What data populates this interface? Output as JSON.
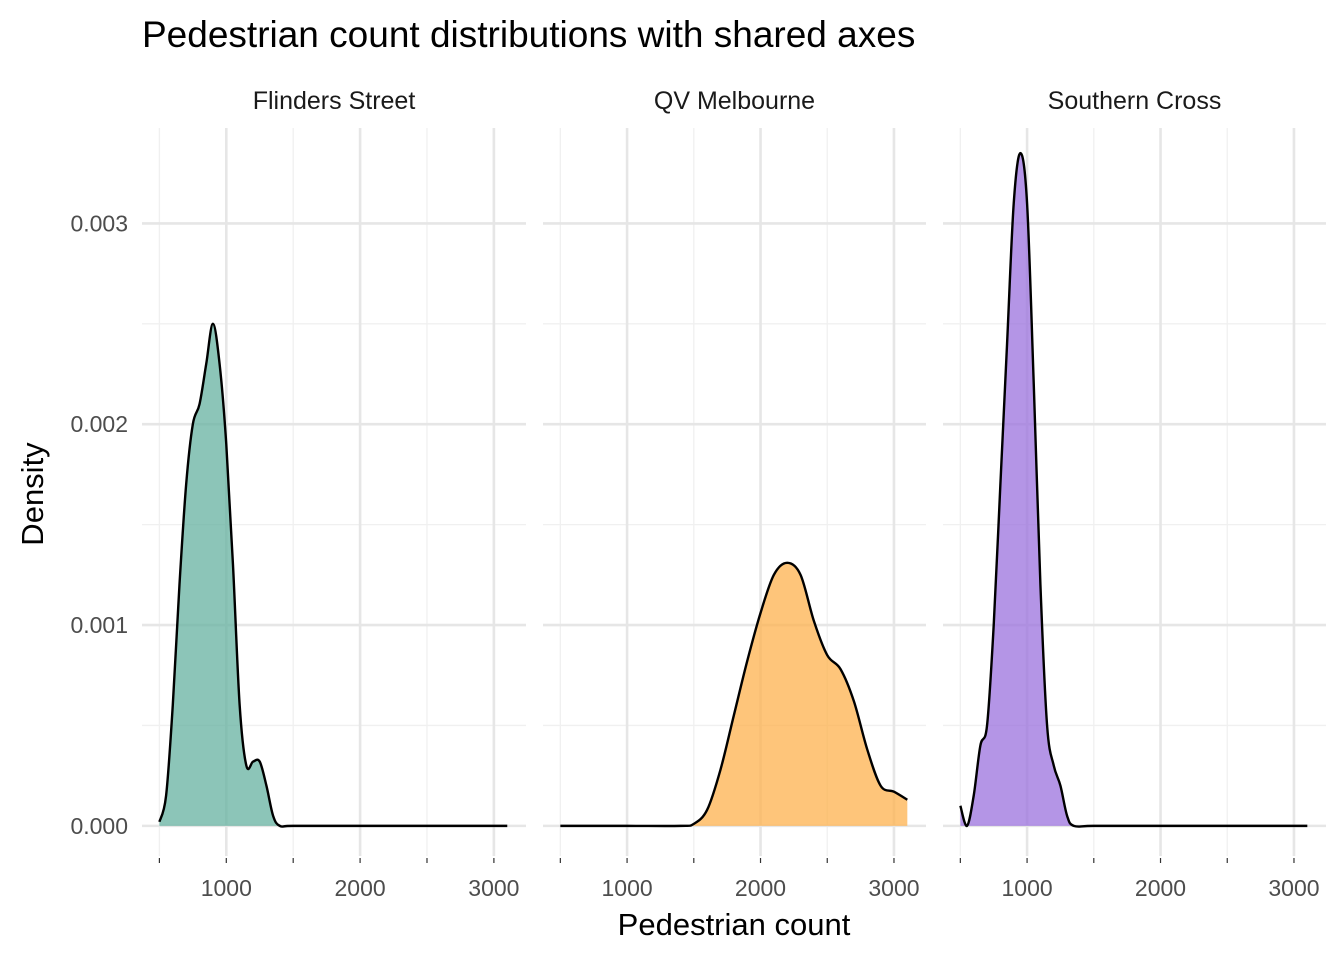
{
  "chart_data": {
    "type": "area",
    "title": "Pedestrian count distributions with shared axes",
    "xlabel": "Pedestrian count",
    "ylabel": "Density",
    "xlim": [
      370,
      3240
    ],
    "ylim": [
      -0.00015,
      0.003475
    ],
    "x_ticks": [
      1000,
      2000,
      3000
    ],
    "x_tick_labels": [
      "1000",
      "2000",
      "3000"
    ],
    "y_ticks": [
      0,
      0.001,
      0.002,
      0.003
    ],
    "y_tick_labels": [
      "0.000",
      "0.001",
      "0.002",
      "0.003"
    ],
    "grid": true,
    "legend": "none",
    "panels": [
      {
        "name": "Flinders Street",
        "color": "#66B2A0",
        "points": [
          [
            500,
            2e-05
          ],
          [
            550,
            0.00015
          ],
          [
            600,
            0.0006
          ],
          [
            650,
            0.0012
          ],
          [
            700,
            0.0017
          ],
          [
            750,
            0.002
          ],
          [
            800,
            0.0021
          ],
          [
            850,
            0.0023
          ],
          [
            900,
            0.0025
          ],
          [
            950,
            0.0023
          ],
          [
            1000,
            0.0019
          ],
          [
            1050,
            0.0013
          ],
          [
            1100,
            0.0006
          ],
          [
            1150,
            0.0003
          ],
          [
            1200,
            0.00032
          ],
          [
            1250,
            0.00032
          ],
          [
            1300,
            0.0002
          ],
          [
            1350,
            5e-05
          ],
          [
            1400,
            0.0
          ],
          [
            1500,
            0.0
          ],
          [
            2000,
            0.0
          ],
          [
            2500,
            0.0
          ],
          [
            3100,
            0.0
          ]
        ]
      },
      {
        "name": "QV Melbourne",
        "color": "#FDB24E",
        "points": [
          [
            500,
            0.0
          ],
          [
            1000,
            0.0
          ],
          [
            1400,
            0.0
          ],
          [
            1500,
            1e-05
          ],
          [
            1600,
            8e-05
          ],
          [
            1700,
            0.00028
          ],
          [
            1800,
            0.00055
          ],
          [
            1900,
            0.00082
          ],
          [
            2000,
            0.00106
          ],
          [
            2100,
            0.00125
          ],
          [
            2200,
            0.00131
          ],
          [
            2300,
            0.00125
          ],
          [
            2400,
            0.00102
          ],
          [
            2500,
            0.00085
          ],
          [
            2600,
            0.00078
          ],
          [
            2700,
            0.00062
          ],
          [
            2800,
            0.00038
          ],
          [
            2900,
            0.0002
          ],
          [
            3000,
            0.00017
          ],
          [
            3100,
            0.00013
          ]
        ]
      },
      {
        "name": "Southern Cross",
        "color": "#9B72DE",
        "points": [
          [
            500,
            0.0001
          ],
          [
            550,
            0.0
          ],
          [
            600,
            0.00015
          ],
          [
            650,
            0.0004
          ],
          [
            700,
            0.0005
          ],
          [
            750,
            0.001
          ],
          [
            800,
            0.0017
          ],
          [
            850,
            0.0024
          ],
          [
            900,
            0.0031
          ],
          [
            950,
            0.00335
          ],
          [
            1000,
            0.0031
          ],
          [
            1050,
            0.0022
          ],
          [
            1100,
            0.0012
          ],
          [
            1150,
            0.0005
          ],
          [
            1200,
            0.0003
          ],
          [
            1250,
            0.0002
          ],
          [
            1300,
            5e-05
          ],
          [
            1350,
            0.0
          ],
          [
            1500,
            0.0
          ],
          [
            2000,
            0.0
          ],
          [
            2500,
            0.0
          ],
          [
            3100,
            0.0
          ]
        ]
      }
    ]
  }
}
